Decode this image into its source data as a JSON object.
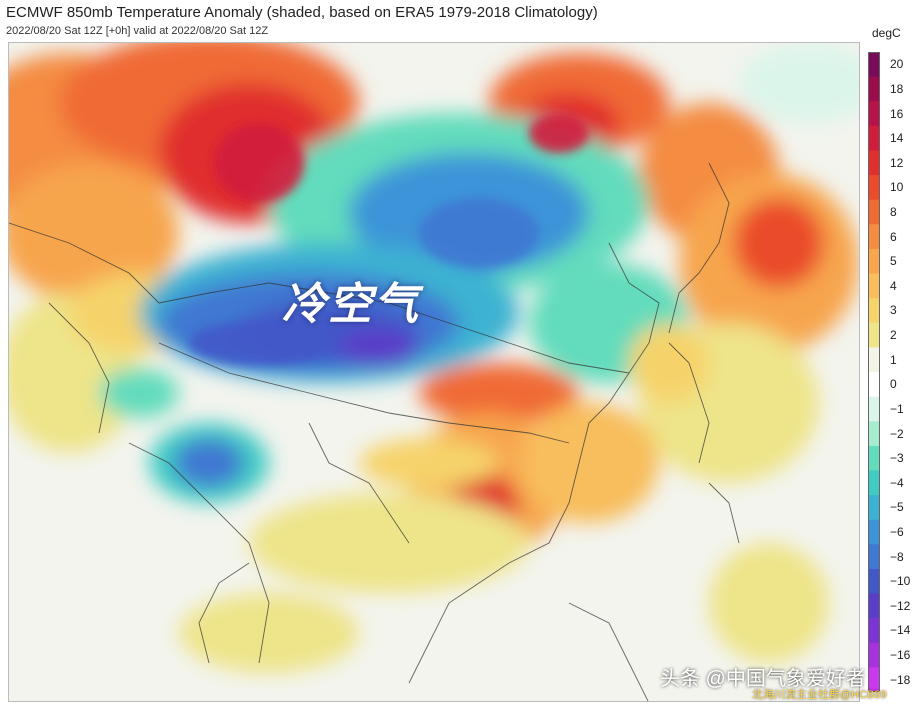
{
  "header": {
    "title": "ECMWF 850mb Temperature Anomaly (shaded, based on ERA5 1979-2018 Climatology)",
    "subtitle": "2022/08/20 Sat 12Z [+0h] valid at 2022/08/20 Sat 12Z"
  },
  "map": {
    "annotation": "冷空气"
  },
  "colorbar": {
    "unit": "degC",
    "levels": [
      {
        "value": 20,
        "label": "20",
        "color": "#7a0a5a"
      },
      {
        "value": 18,
        "label": "18",
        "color": "#9c0c4c"
      },
      {
        "value": 16,
        "label": "16",
        "color": "#b8124a"
      },
      {
        "value": 14,
        "label": "14",
        "color": "#d11d3c"
      },
      {
        "value": 12,
        "label": "12",
        "color": "#e02f2e"
      },
      {
        "value": 10,
        "label": "10",
        "color": "#ea4b2c"
      },
      {
        "value": 8,
        "label": "8",
        "color": "#f06a34"
      },
      {
        "value": 6,
        "label": "6",
        "color": "#f48c42"
      },
      {
        "value": 5,
        "label": "5",
        "color": "#f7a54e"
      },
      {
        "value": 4,
        "label": "4",
        "color": "#f8bd5c"
      },
      {
        "value": 3,
        "label": "3",
        "color": "#f6d36b"
      },
      {
        "value": 2,
        "label": "2",
        "color": "#eee489"
      },
      {
        "value": 1,
        "label": "1",
        "color": "#f4f4e6"
      },
      {
        "value": 0,
        "label": "0",
        "color": "#ffffff"
      },
      {
        "value": -1,
        "label": "−1",
        "color": "#dcf5ea"
      },
      {
        "value": -2,
        "label": "−2",
        "color": "#a8ecd0"
      },
      {
        "value": -3,
        "label": "−3",
        "color": "#62dcbc"
      },
      {
        "value": -4,
        "label": "−4",
        "color": "#40ccc2"
      },
      {
        "value": -5,
        "label": "−5",
        "color": "#3cb2d2"
      },
      {
        "value": -6,
        "label": "−6",
        "color": "#3e94d8"
      },
      {
        "value": -8,
        "label": "−8",
        "color": "#4078d2"
      },
      {
        "value": -10,
        "label": "−10",
        "color": "#4258c8"
      },
      {
        "value": -12,
        "label": "−12",
        "color": "#5a3ec8"
      },
      {
        "value": -14,
        "label": "−14",
        "color": "#7e34d4"
      },
      {
        "value": -16,
        "label": "−16",
        "color": "#a632de"
      },
      {
        "value": -18,
        "label": "−18",
        "color": "#c838ec"
      }
    ]
  },
  "watermark": {
    "primary": "头条 @中国气象爱好者",
    "secondary": "北海川流主业社群@HCB89"
  }
}
